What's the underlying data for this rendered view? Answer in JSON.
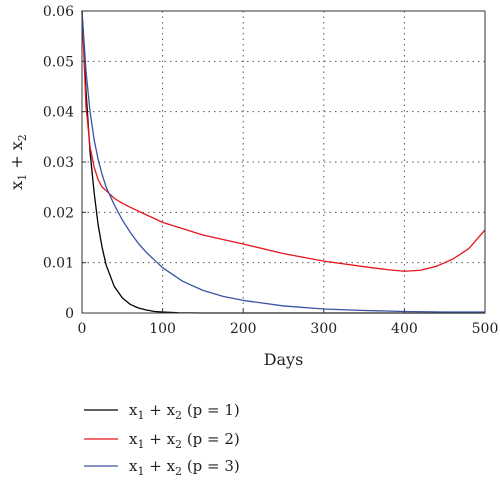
{
  "chart_data": {
    "type": "line",
    "xlabel": "Days",
    "ylabel": {
      "main": "x",
      "sub1": "1",
      "plus": " + x",
      "sub2": "2"
    },
    "xlim": [
      0,
      500
    ],
    "ylim": [
      0,
      0.06
    ],
    "xticks": [
      0,
      100,
      200,
      300,
      400,
      500
    ],
    "yticks": [
      0,
      0.01,
      0.02,
      0.03,
      0.04,
      0.05,
      0.06
    ],
    "xtick_labels": [
      "0",
      "100",
      "200",
      "300",
      "400",
      "500"
    ],
    "ytick_labels": [
      "0",
      "0.01",
      "0.02",
      "0.03",
      "0.04",
      "0.05",
      "0.06"
    ],
    "grid": true,
    "legend_position": "bottom-left, below plot",
    "series": [
      {
        "name": "x1 + x2 (p = 1)",
        "legend": {
          "pre": "x",
          "s1": "1",
          "mid": " + x",
          "s2": "2",
          "post": " (p = 1)"
        },
        "color": "#000000",
        "x": [
          0,
          5,
          10,
          15,
          20,
          25,
          30,
          40,
          50,
          60,
          70,
          80,
          90,
          100,
          120,
          150,
          200,
          300,
          400,
          500
        ],
        "y": [
          0.06,
          0.044,
          0.032,
          0.024,
          0.0175,
          0.013,
          0.0095,
          0.0053,
          0.003,
          0.0017,
          0.001,
          0.0006,
          0.0003,
          0.0002,
          5e-05,
          0,
          0,
          0,
          0,
          0
        ]
      },
      {
        "name": "x1 + x2 (p = 2)",
        "legend": {
          "pre": "x",
          "s1": "1",
          "mid": " + x",
          "s2": "2",
          "post": " (p = 2)"
        },
        "color": "#e8141b",
        "x": [
          0,
          5,
          10,
          15,
          20,
          25,
          30,
          40,
          50,
          60,
          80,
          100,
          150,
          200,
          250,
          300,
          350,
          380,
          400,
          420,
          440,
          460,
          480,
          500
        ],
        "y": [
          0.06,
          0.041,
          0.033,
          0.029,
          0.0265,
          0.025,
          0.0243,
          0.0228,
          0.0218,
          0.021,
          0.0195,
          0.018,
          0.0155,
          0.0137,
          0.0118,
          0.0103,
          0.0092,
          0.0086,
          0.0083,
          0.0085,
          0.0093,
          0.0107,
          0.0128,
          0.0165
        ]
      },
      {
        "name": "x1 + x2 (p = 3)",
        "legend": {
          "pre": "x",
          "s1": "1",
          "mid": " + x",
          "s2": "2",
          "post": " (p = 3)"
        },
        "color": "#3a53a4",
        "x": [
          0,
          5,
          10,
          15,
          20,
          25,
          30,
          40,
          50,
          60,
          70,
          80,
          100,
          125,
          150,
          175,
          200,
          250,
          300,
          350,
          400,
          450,
          500
        ],
        "y": [
          0.06,
          0.048,
          0.04,
          0.0345,
          0.0305,
          0.0275,
          0.025,
          0.0215,
          0.0185,
          0.016,
          0.0138,
          0.012,
          0.009,
          0.0063,
          0.0045,
          0.0033,
          0.0025,
          0.0014,
          0.0008,
          0.0005,
          0.0003,
          0.0002,
          0.0002
        ]
      }
    ]
  }
}
